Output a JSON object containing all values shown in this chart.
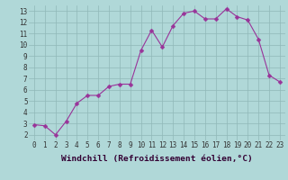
{
  "x": [
    0,
    1,
    2,
    3,
    4,
    5,
    6,
    7,
    8,
    9,
    10,
    11,
    12,
    13,
    14,
    15,
    16,
    17,
    18,
    19,
    20,
    21,
    22,
    23
  ],
  "y": [
    2.9,
    2.8,
    2.0,
    3.2,
    4.8,
    5.5,
    5.5,
    6.3,
    6.5,
    6.5,
    9.5,
    11.3,
    9.8,
    11.7,
    12.8,
    13.0,
    12.3,
    12.3,
    13.2,
    12.5,
    12.2,
    10.5,
    7.3,
    6.7
  ],
  "line_color": "#993399",
  "marker_color": "#993399",
  "bg_color": "#b0d8d8",
  "grid_color": "#90b8b8",
  "xlabel": "Windchill (Refroidissement éolien,°C)",
  "xlim": [
    -0.5,
    23.5
  ],
  "ylim": [
    1.5,
    13.5
  ],
  "yticks": [
    2,
    3,
    4,
    5,
    6,
    7,
    8,
    9,
    10,
    11,
    12,
    13
  ],
  "xticks": [
    0,
    1,
    2,
    3,
    4,
    5,
    6,
    7,
    8,
    9,
    10,
    11,
    12,
    13,
    14,
    15,
    16,
    17,
    18,
    19,
    20,
    21,
    22,
    23
  ],
  "tick_fontsize": 5.5,
  "xlabel_fontsize": 6.8,
  "marker_size": 2.5,
  "line_width": 0.8
}
